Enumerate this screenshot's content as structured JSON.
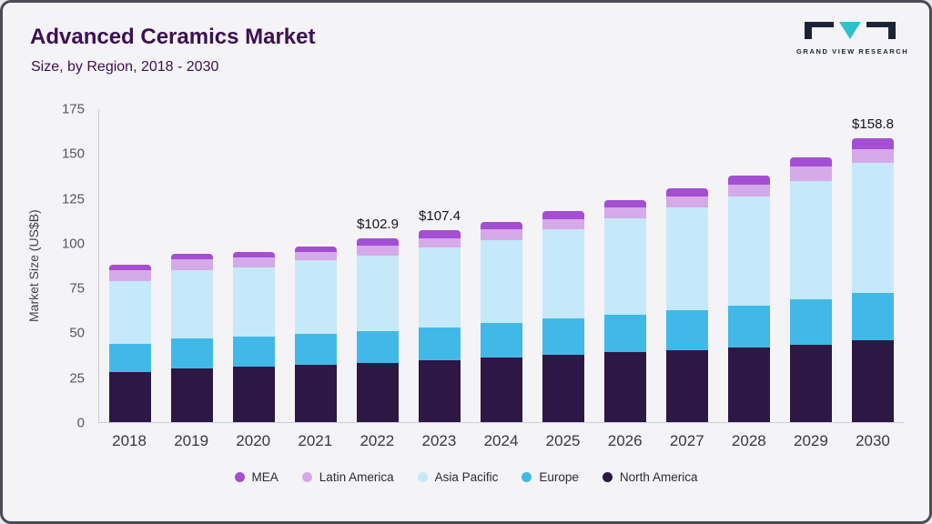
{
  "header": {
    "title": "Advanced Ceramics Market",
    "subtitle": "Size, by Region, 2018 - 2030"
  },
  "logo": {
    "text": "GRAND VIEW RESEARCH"
  },
  "chart_data": {
    "type": "bar",
    "stacked": true,
    "title": "Advanced Ceramics Market Size, by Region, 2018 - 2030",
    "ylabel": "Market Size (US$B)",
    "ylim": [
      0,
      175
    ],
    "yticks": [
      0,
      25,
      50,
      75,
      100,
      125,
      150,
      175
    ],
    "categories": [
      "2018",
      "2019",
      "2020",
      "2021",
      "2022",
      "2023",
      "2024",
      "2025",
      "2026",
      "2027",
      "2028",
      "2029",
      "2030"
    ],
    "series": [
      {
        "name": "North America",
        "color": "#2d1745",
        "values": [
          28,
          30,
          31,
          32,
          33,
          34.5,
          36,
          37.5,
          39,
          40,
          41.5,
          43.5,
          46
        ]
      },
      {
        "name": "Europe",
        "color": "#41b9e8",
        "values": [
          16,
          17,
          17,
          17.5,
          18,
          18.5,
          19.5,
          20.5,
          21,
          22.5,
          23.5,
          25,
          26.5
        ]
      },
      {
        "name": "Asia Pacific",
        "color": "#c6e9f9",
        "values": [
          35,
          38,
          38.5,
          41,
          42,
          44.5,
          46.5,
          50,
          54,
          57.5,
          61,
          66.5,
          72.5
        ]
      },
      {
        "name": "Latin America",
        "color": "#d6a9e9",
        "values": [
          6,
          6,
          5.5,
          4.5,
          5.9,
          5.5,
          6,
          5.5,
          6,
          6,
          7,
          8,
          7.8
        ]
      },
      {
        "name": "MEA",
        "color": "#a44ed3",
        "values": [
          3,
          3,
          3,
          3,
          4,
          4.4,
          4,
          4.5,
          4,
          5,
          5,
          5,
          6
        ]
      }
    ],
    "totals": [
      88,
      94,
      95,
      98,
      102.9,
      107.4,
      112,
      118,
      124,
      131,
      138,
      148,
      158.8
    ],
    "annotations": [
      {
        "category": "2022",
        "label": "$102.9"
      },
      {
        "category": "2023",
        "label": "$107.4"
      },
      {
        "category": "2030",
        "label": "$158.8"
      }
    ],
    "legend_order": [
      "MEA",
      "Latin America",
      "Asia Pacific",
      "Europe",
      "North America"
    ],
    "legend_position": "bottom",
    "grid": false
  }
}
